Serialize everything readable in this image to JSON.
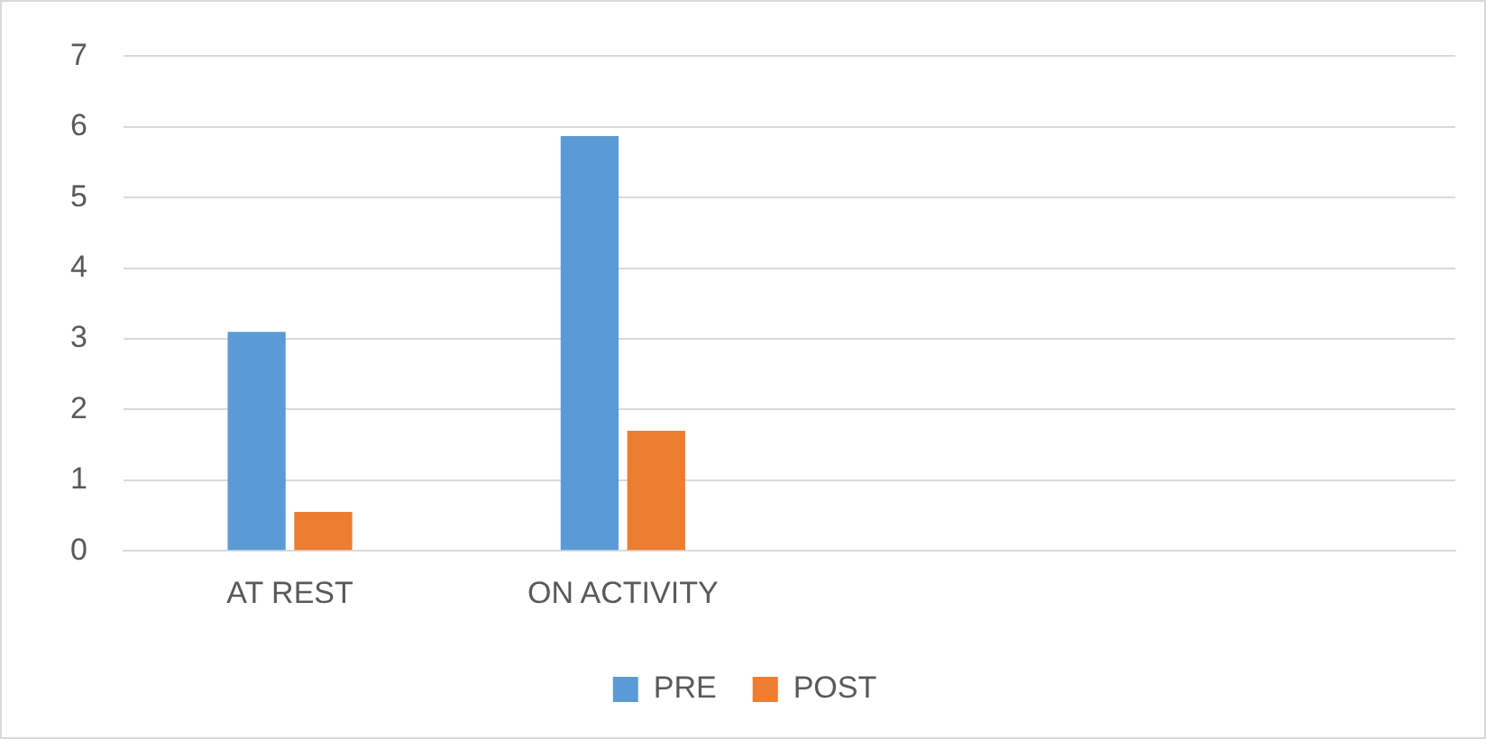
{
  "chart_data": {
    "type": "bar",
    "categories": [
      "AT REST",
      "ON ACTIVITY",
      null,
      null
    ],
    "series": [
      {
        "name": "PRE",
        "color": "#5b9bd5",
        "values": [
          3.1,
          5.87,
          null,
          null
        ]
      },
      {
        "name": "POST",
        "color": "#ed7d31",
        "values": [
          0.55,
          1.7,
          null,
          null
        ]
      }
    ],
    "ylim": [
      0,
      7
    ],
    "yticks": [
      0,
      1,
      2,
      3,
      4,
      5,
      6,
      7
    ],
    "grid": "y",
    "legend": "bottom"
  }
}
